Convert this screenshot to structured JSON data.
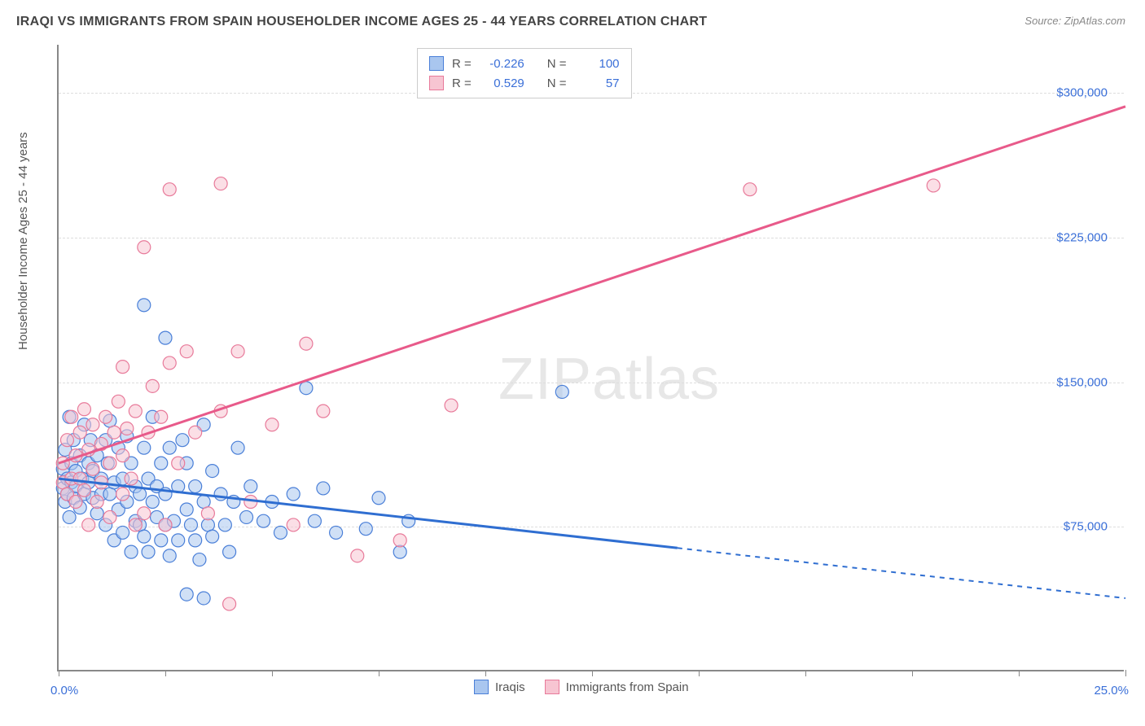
{
  "title": "IRAQI VS IMMIGRANTS FROM SPAIN HOUSEHOLDER INCOME AGES 25 - 44 YEARS CORRELATION CHART",
  "source_label": "Source:",
  "source_value": "ZipAtlas.com",
  "y_axis_label": "Householder Income Ages 25 - 44 years",
  "watermark_a": "ZIP",
  "watermark_b": "atlas",
  "chart": {
    "type": "scatter",
    "xlim": [
      0,
      25
    ],
    "ylim": [
      0,
      325000
    ],
    "x_min_label": "0.0%",
    "x_max_label": "25.0%",
    "x_ticks": [
      0,
      2.5,
      5,
      7.5,
      10,
      12.5,
      15,
      17.5,
      20,
      22.5,
      25
    ],
    "y_gridlines": [
      75000,
      150000,
      225000,
      300000
    ],
    "y_tick_labels": [
      "$75,000",
      "$150,000",
      "$225,000",
      "$300,000"
    ],
    "background_color": "#ffffff",
    "grid_color": "#dddddd",
    "axis_color": "#888888",
    "tick_label_color": "#3a6fd8",
    "marker_radius": 8,
    "marker_opacity": 0.55,
    "series": [
      {
        "name": "Iraqis",
        "color_fill": "#a9c6ef",
        "color_stroke": "#4a7fd8",
        "R": "-0.226",
        "N": "100",
        "trend": {
          "y_at_x0": 100000,
          "y_at_xmax": 38000,
          "solid_until_x": 14.5,
          "color": "#2f6ed1",
          "width": 3
        },
        "points": [
          [
            0.1,
            95000
          ],
          [
            0.1,
            105000
          ],
          [
            0.15,
            115000
          ],
          [
            0.15,
            88000
          ],
          [
            0.2,
            92000
          ],
          [
            0.2,
            100000
          ],
          [
            0.25,
            132000
          ],
          [
            0.25,
            80000
          ],
          [
            0.3,
            98000
          ],
          [
            0.3,
            108000
          ],
          [
            0.35,
            120000
          ],
          [
            0.35,
            90000
          ],
          [
            0.4,
            104000
          ],
          [
            0.4,
            96000
          ],
          [
            0.5,
            112000
          ],
          [
            0.5,
            85000
          ],
          [
            0.55,
            100000
          ],
          [
            0.6,
            128000
          ],
          [
            0.6,
            92000
          ],
          [
            0.7,
            108000
          ],
          [
            0.7,
            98000
          ],
          [
            0.75,
            120000
          ],
          [
            0.8,
            90000
          ],
          [
            0.8,
            104000
          ],
          [
            0.9,
            112000
          ],
          [
            0.9,
            82000
          ],
          [
            1.0,
            100000
          ],
          [
            1.0,
            92000
          ],
          [
            1.1,
            120000
          ],
          [
            1.1,
            76000
          ],
          [
            1.15,
            108000
          ],
          [
            1.2,
            130000
          ],
          [
            1.2,
            92000
          ],
          [
            1.3,
            98000
          ],
          [
            1.3,
            68000
          ],
          [
            1.4,
            116000
          ],
          [
            1.4,
            84000
          ],
          [
            1.5,
            100000
          ],
          [
            1.5,
            72000
          ],
          [
            1.6,
            122000
          ],
          [
            1.6,
            88000
          ],
          [
            1.7,
            108000
          ],
          [
            1.7,
            62000
          ],
          [
            1.8,
            96000
          ],
          [
            1.8,
            78000
          ],
          [
            1.9,
            76000
          ],
          [
            1.9,
            92000
          ],
          [
            2.0,
            116000
          ],
          [
            2.0,
            70000
          ],
          [
            2.1,
            100000
          ],
          [
            2.1,
            62000
          ],
          [
            2.2,
            88000
          ],
          [
            2.2,
            132000
          ],
          [
            2.3,
            80000
          ],
          [
            2.3,
            96000
          ],
          [
            2.4,
            108000
          ],
          [
            2.4,
            68000
          ],
          [
            2.5,
            76000
          ],
          [
            2.5,
            92000
          ],
          [
            2.6,
            60000
          ],
          [
            2.6,
            116000
          ],
          [
            2.7,
            78000
          ],
          [
            2.8,
            96000
          ],
          [
            2.8,
            68000
          ],
          [
            2.9,
            120000
          ],
          [
            3.0,
            84000
          ],
          [
            3.0,
            108000
          ],
          [
            3.1,
            76000
          ],
          [
            3.2,
            96000
          ],
          [
            3.2,
            68000
          ],
          [
            3.3,
            58000
          ],
          [
            3.4,
            88000
          ],
          [
            3.4,
            128000
          ],
          [
            3.5,
            76000
          ],
          [
            3.6,
            104000
          ],
          [
            3.6,
            70000
          ],
          [
            3.8,
            92000
          ],
          [
            3.9,
            76000
          ],
          [
            4.0,
            62000
          ],
          [
            4.1,
            88000
          ],
          [
            4.2,
            116000
          ],
          [
            4.4,
            80000
          ],
          [
            4.5,
            96000
          ],
          [
            4.8,
            78000
          ],
          [
            5.0,
            88000
          ],
          [
            5.2,
            72000
          ],
          [
            5.5,
            92000
          ],
          [
            5.8,
            147000
          ],
          [
            6.0,
            78000
          ],
          [
            6.2,
            95000
          ],
          [
            6.5,
            72000
          ],
          [
            7.2,
            74000
          ],
          [
            7.5,
            90000
          ],
          [
            8.0,
            62000
          ],
          [
            8.2,
            78000
          ],
          [
            2.0,
            190000
          ],
          [
            2.5,
            173000
          ],
          [
            3.0,
            40000
          ],
          [
            11.8,
            145000
          ],
          [
            3.4,
            38000
          ]
        ]
      },
      {
        "name": "Immigrants from Spain",
        "color_fill": "#f7c5d2",
        "color_stroke": "#e87a9a",
        "R": "0.529",
        "N": "57",
        "trend": {
          "y_at_x0": 108000,
          "y_at_xmax": 293000,
          "solid_until_x": 25,
          "color": "#e85a8a",
          "width": 3
        },
        "points": [
          [
            0.1,
            108000
          ],
          [
            0.1,
            98000
          ],
          [
            0.2,
            120000
          ],
          [
            0.2,
            92000
          ],
          [
            0.3,
            132000
          ],
          [
            0.3,
            100000
          ],
          [
            0.4,
            112000
          ],
          [
            0.4,
            88000
          ],
          [
            0.5,
            124000
          ],
          [
            0.5,
            100000
          ],
          [
            0.6,
            136000
          ],
          [
            0.6,
            94000
          ],
          [
            0.7,
            115000
          ],
          [
            0.7,
            76000
          ],
          [
            0.8,
            128000
          ],
          [
            0.8,
            105000
          ],
          [
            0.9,
            88000
          ],
          [
            1.0,
            118000
          ],
          [
            1.0,
            98000
          ],
          [
            1.1,
            132000
          ],
          [
            1.2,
            108000
          ],
          [
            1.2,
            80000
          ],
          [
            1.3,
            124000
          ],
          [
            1.4,
            140000
          ],
          [
            1.5,
            112000
          ],
          [
            1.5,
            92000
          ],
          [
            1.6,
            126000
          ],
          [
            1.7,
            100000
          ],
          [
            1.8,
            135000
          ],
          [
            1.8,
            76000
          ],
          [
            2.0,
            82000
          ],
          [
            2.1,
            124000
          ],
          [
            2.2,
            148000
          ],
          [
            2.4,
            132000
          ],
          [
            2.5,
            76000
          ],
          [
            2.8,
            108000
          ],
          [
            3.0,
            166000
          ],
          [
            3.2,
            124000
          ],
          [
            3.5,
            82000
          ],
          [
            3.8,
            135000
          ],
          [
            4.2,
            166000
          ],
          [
            4.5,
            88000
          ],
          [
            5.0,
            128000
          ],
          [
            5.5,
            76000
          ],
          [
            5.8,
            170000
          ],
          [
            6.2,
            135000
          ],
          [
            7.0,
            60000
          ],
          [
            8.0,
            68000
          ],
          [
            9.2,
            138000
          ],
          [
            2.6,
            250000
          ],
          [
            3.8,
            253000
          ],
          [
            2.6,
            160000
          ],
          [
            4.0,
            35000
          ],
          [
            2.0,
            220000
          ],
          [
            16.2,
            250000
          ],
          [
            20.5,
            252000
          ],
          [
            1.5,
            158000
          ]
        ]
      }
    ]
  },
  "legend_labels": {
    "R": "R =",
    "N": "N ="
  }
}
